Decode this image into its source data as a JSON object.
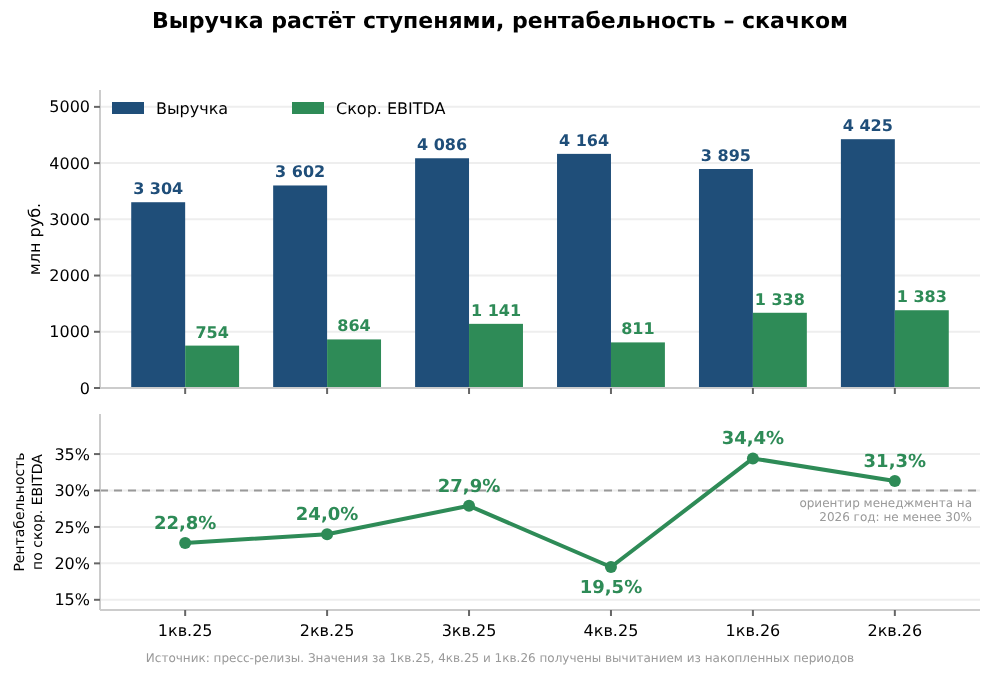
{
  "chart_data": [
    {
      "type": "bar",
      "title": "Выручка растёт ступенями, рентабельность – скачком",
      "ylabel": "млн руб.",
      "series": [
        {
          "name": "Выручка",
          "color": "#1f4e79",
          "values": [
            3304,
            3602,
            4086,
            4164,
            3895,
            4425
          ],
          "value_labels": [
            "3 304",
            "3 602",
            "4 086",
            "4 164",
            "3 895",
            "4 425"
          ]
        },
        {
          "name": "Скор. EBITDA",
          "color": "#2e8b57",
          "values": [
            754,
            864,
            1141,
            811,
            1338,
            1383
          ],
          "value_labels": [
            "754",
            "864",
            "1 141",
            "811",
            "1 338",
            "1 383"
          ]
        }
      ],
      "ylim": [
        0,
        5300
      ],
      "yticks": [
        0,
        1000,
        2000,
        3000,
        4000,
        5000
      ],
      "grid": "y",
      "legend": "top left",
      "tick_labels": "y"
    },
    {
      "type": "line",
      "ylabel": "Рентабельность\nпо скор. EBITDA",
      "categories": [
        "1кв.25",
        "2кв.25",
        "3кв.25",
        "4кв.25",
        "1кв.26",
        "2кв.26"
      ],
      "series": [
        {
          "color": "#2e8b57",
          "values": [
            22.8,
            24.0,
            27.9,
            19.5,
            34.4,
            31.3
          ],
          "value_labels": [
            "22,8%",
            "24,0%",
            "27,9%",
            "19,5%",
            "34,4%",
            "31,3%"
          ]
        }
      ],
      "ylim": [
        13.6,
        40.5
      ],
      "yticks": [
        {
          "value": 15,
          "label": "15%"
        },
        {
          "value": 20,
          "label": "20%"
        },
        {
          "value": 25,
          "label": "25%"
        },
        {
          "value": 30,
          "label": "30%"
        },
        {
          "value": 35,
          "label": "35%"
        }
      ],
      "grid": "y",
      "marker": "circle",
      "line_style": "solid",
      "ref_lines": [
        {
          "axis": "y",
          "value": 30,
          "label": "ориентир менеджмента на 2026 год: не менее 30%",
          "color": "#999999",
          "line_style": "dashed"
        }
      ],
      "annotations": [
        "Источник: пресс-релизы. Значения за 1кв.25, 4кв.25 и 1кв.26 получены вычитанием из накопленных периодов"
      ]
    }
  ]
}
